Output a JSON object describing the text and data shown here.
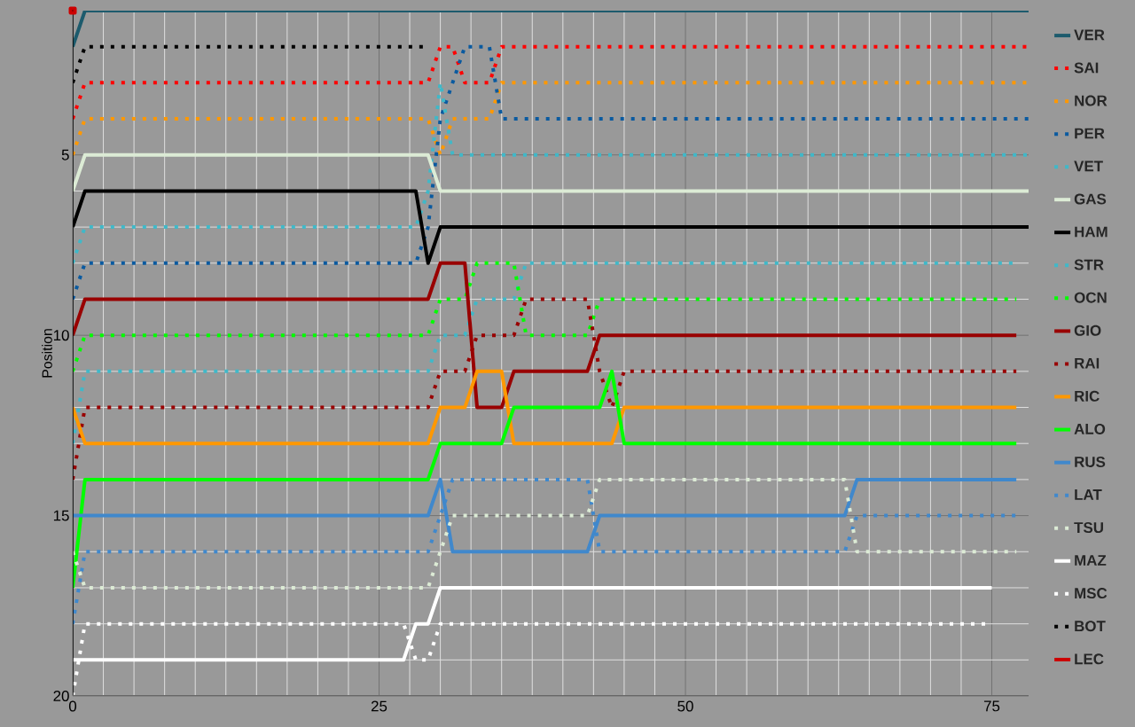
{
  "chart_data": {
    "type": "line",
    "ylabel": "Position",
    "xlim": [
      0,
      78
    ],
    "ylim": [
      20,
      1
    ],
    "xticks": [
      0,
      25,
      50,
      75
    ],
    "yticks": [
      5,
      10,
      15,
      20
    ],
    "grid": true,
    "legend": "right",
    "series": [
      {
        "name": "VER",
        "color": "#1d5b6d",
        "line_style": "solid",
        "x": [
          0,
          1,
          78
        ],
        "values": [
          2,
          1,
          1
        ]
      },
      {
        "name": "SAI",
        "color": "#ff0000",
        "line_style": "dotted",
        "x": [
          0,
          1,
          29,
          30,
          31,
          32,
          34,
          35,
          78
        ],
        "values": [
          4,
          3,
          3,
          2,
          2,
          3,
          3,
          2,
          2
        ]
      },
      {
        "name": "NOR",
        "color": "#ff9800",
        "line_style": "dotted",
        "x": [
          0,
          1,
          29,
          30,
          31,
          34,
          35,
          78
        ],
        "values": [
          5,
          4,
          4,
          5,
          4,
          4,
          3,
          3
        ]
      },
      {
        "name": "PER",
        "color": "#0a5aa0",
        "line_style": "dotted",
        "x": [
          0,
          1,
          28,
          29,
          30,
          31,
          32,
          34,
          35,
          78
        ],
        "values": [
          9,
          8,
          8,
          7,
          4,
          3,
          2,
          2,
          4,
          4
        ]
      },
      {
        "name": "VET",
        "color": "#40b8c8",
        "line_style": "dotted",
        "x": [
          0,
          1,
          28,
          29,
          30,
          31,
          78
        ],
        "values": [
          8,
          7,
          7,
          6,
          3,
          5,
          5
        ]
      },
      {
        "name": "GAS",
        "color": "#dcebd5",
        "line_style": "solid",
        "x": [
          0,
          1,
          29,
          30,
          78
        ],
        "values": [
          6,
          5,
          5,
          6,
          6
        ]
      },
      {
        "name": "HAM",
        "color": "#000000",
        "line_style": "solid",
        "x": [
          0,
          1,
          28,
          29,
          30,
          78
        ],
        "values": [
          7,
          6,
          6,
          8,
          7,
          7
        ]
      },
      {
        "name": "STR",
        "color": "#40b8c8",
        "line_style": "dotted",
        "x": [
          0,
          1,
          29,
          30,
          32,
          33,
          36,
          37,
          77
        ],
        "values": [
          13,
          11,
          11,
          10,
          10,
          9,
          9,
          8,
          8
        ]
      },
      {
        "name": "OCN",
        "color": "#00ff00",
        "line_style": "dotted",
        "x": [
          0,
          1,
          29,
          30,
          32,
          33,
          36,
          37,
          42,
          43,
          77
        ],
        "values": [
          11,
          10,
          10,
          9,
          9,
          8,
          8,
          10,
          10,
          9,
          9
        ]
      },
      {
        "name": "GIO",
        "color": "#990000",
        "line_style": "solid",
        "x": [
          0,
          1,
          29,
          30,
          32,
          33,
          35,
          36,
          42,
          43,
          77
        ],
        "values": [
          10,
          9,
          9,
          8,
          8,
          12,
          12,
          11,
          11,
          10,
          10
        ]
      },
      {
        "name": "RAI",
        "color": "#990000",
        "line_style": "dotted",
        "x": [
          0,
          1,
          29,
          30,
          32,
          33,
          36,
          37,
          42,
          43,
          44,
          45,
          77
        ],
        "values": [
          14,
          12,
          12,
          11,
          11,
          10,
          10,
          9,
          9,
          11,
          12,
          11,
          11
        ]
      },
      {
        "name": "RIC",
        "color": "#ff9800",
        "line_style": "solid",
        "x": [
          0,
          1,
          29,
          30,
          32,
          33,
          35,
          36,
          44,
          45,
          77
        ],
        "values": [
          12,
          13,
          13,
          12,
          12,
          11,
          11,
          13,
          13,
          12,
          12
        ]
      },
      {
        "name": "ALO",
        "color": "#00ff00",
        "line_style": "solid",
        "x": [
          0,
          1,
          29,
          30,
          35,
          36,
          43,
          44,
          45,
          77
        ],
        "values": [
          17,
          14,
          14,
          13,
          13,
          12,
          12,
          11,
          13,
          13
        ]
      },
      {
        "name": "RUS",
        "color": "#4088cc",
        "line_style": "solid",
        "x": [
          0,
          29,
          30,
          31,
          42,
          43,
          63,
          64,
          77
        ],
        "values": [
          15,
          15,
          14,
          16,
          16,
          15,
          15,
          14,
          14
        ]
      },
      {
        "name": "LAT",
        "color": "#4088cc",
        "line_style": "dotted",
        "x": [
          0,
          1,
          29,
          30,
          31,
          42,
          43,
          63,
          64,
          77
        ],
        "values": [
          18,
          16,
          16,
          15,
          14,
          14,
          16,
          16,
          15,
          15
        ]
      },
      {
        "name": "TSU",
        "color": "#dcebd5",
        "line_style": "dotted",
        "x": [
          0,
          1,
          29,
          30,
          31,
          42,
          43,
          63,
          64,
          77
        ],
        "values": [
          16,
          17,
          17,
          16,
          15,
          15,
          14,
          14,
          16,
          16
        ]
      },
      {
        "name": "MAZ",
        "color": "#ffffff",
        "line_style": "solid",
        "x": [
          0,
          27,
          28,
          29,
          30,
          75
        ],
        "values": [
          19,
          19,
          18,
          18,
          17,
          17
        ]
      },
      {
        "name": "MSC",
        "color": "#ffffff",
        "line_style": "dotted",
        "x": [
          0,
          1,
          27,
          28,
          29,
          30,
          75
        ],
        "values": [
          20,
          18,
          18,
          19,
          19,
          18,
          18
        ]
      },
      {
        "name": "BOT",
        "color": "#000000",
        "line_style": "dotted",
        "x": [
          0,
          1,
          29
        ],
        "values": [
          3,
          2,
          2
        ]
      },
      {
        "name": "LEC",
        "color": "#cc0000",
        "line_style": "solid",
        "marker": "square",
        "x": [
          0
        ],
        "values": [
          1
        ]
      }
    ]
  }
}
